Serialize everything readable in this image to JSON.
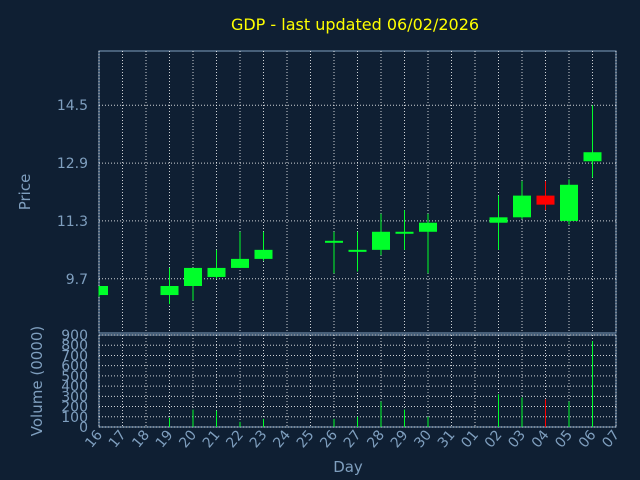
{
  "chart_data": {
    "type": "candlestick",
    "title": "GDP - last updated 06/02/2026",
    "xlabel": "Day",
    "price_axis": {
      "label": "Price",
      "ticks": [
        "14.5",
        "12.9",
        "11.3",
        "9.7"
      ],
      "tick_values": [
        14.5,
        12.9,
        11.3,
        9.7
      ],
      "ylim": [
        8.2,
        16.0
      ]
    },
    "volume_axis": {
      "label": "Volume (0000)",
      "ticks": [
        "900",
        "800",
        "700",
        "600",
        "500",
        "400",
        "300",
        "200",
        "100",
        "0"
      ],
      "tick_values": [
        900,
        800,
        700,
        600,
        500,
        400,
        300,
        200,
        100,
        0
      ],
      "ylim": [
        0,
        900
      ]
    },
    "x_tick_labels": [
      "16",
      "17",
      "18",
      "19",
      "20",
      "21",
      "22",
      "23",
      "24",
      "25",
      "26",
      "27",
      "28",
      "29",
      "30",
      "31",
      "01",
      "02",
      "03",
      "04",
      "05",
      "06",
      "07"
    ],
    "candles": [
      {
        "day": "16",
        "open": 9.25,
        "high": 9.5,
        "low": 9.2,
        "close": 9.5,
        "volume": 0
      },
      {
        "day": "19",
        "open": 9.25,
        "high": 10.0,
        "low": 9.0,
        "close": 9.5,
        "volume": 90
      },
      {
        "day": "20",
        "open": 9.5,
        "high": 10.0,
        "low": 9.1,
        "close": 10.0,
        "volume": 170
      },
      {
        "day": "21",
        "open": 9.75,
        "high": 10.5,
        "low": 9.7,
        "close": 10.0,
        "volume": 160
      },
      {
        "day": "22",
        "open": 10.0,
        "high": 11.0,
        "low": 10.0,
        "close": 10.25,
        "volume": 50
      },
      {
        "day": "23",
        "open": 10.25,
        "high": 11.0,
        "low": 10.2,
        "close": 10.5,
        "volume": 80
      },
      {
        "day": "26",
        "open": 10.75,
        "high": 11.0,
        "low": 9.85,
        "close": 10.75,
        "volume": 80
      },
      {
        "day": "27",
        "open": 10.5,
        "high": 11.0,
        "low": 9.9,
        "close": 10.5,
        "volume": 100
      },
      {
        "day": "28",
        "open": 10.5,
        "high": 11.5,
        "low": 10.35,
        "close": 11.0,
        "volume": 250
      },
      {
        "day": "29",
        "open": 11.0,
        "high": 11.6,
        "low": 10.5,
        "close": 11.0,
        "volume": 170
      },
      {
        "day": "30",
        "open": 11.0,
        "high": 11.5,
        "low": 9.85,
        "close": 11.25,
        "volume": 100
      },
      {
        "day": "02",
        "open": 11.25,
        "high": 12.0,
        "low": 10.5,
        "close": 11.4,
        "volume": 320
      },
      {
        "day": "03",
        "open": 11.4,
        "high": 12.4,
        "low": 11.35,
        "close": 12.0,
        "volume": 290
      },
      {
        "day": "04",
        "open": 12.0,
        "high": 12.4,
        "low": 11.6,
        "close": 11.75,
        "volume": 270
      },
      {
        "day": "05",
        "open": 11.3,
        "high": 12.45,
        "low": 11.2,
        "close": 12.3,
        "volume": 250
      },
      {
        "day": "06",
        "open": 12.95,
        "high": 14.5,
        "low": 12.5,
        "close": 13.2,
        "volume": 840
      }
    ],
    "colors": {
      "background": "#0f1f33",
      "up": "#00ff2a",
      "down": "#ff0000",
      "title": "#ffff00",
      "text": "#7f9fbf",
      "grid": "#ffffff",
      "axis": "#7f9fbf"
    },
    "grid": true
  }
}
